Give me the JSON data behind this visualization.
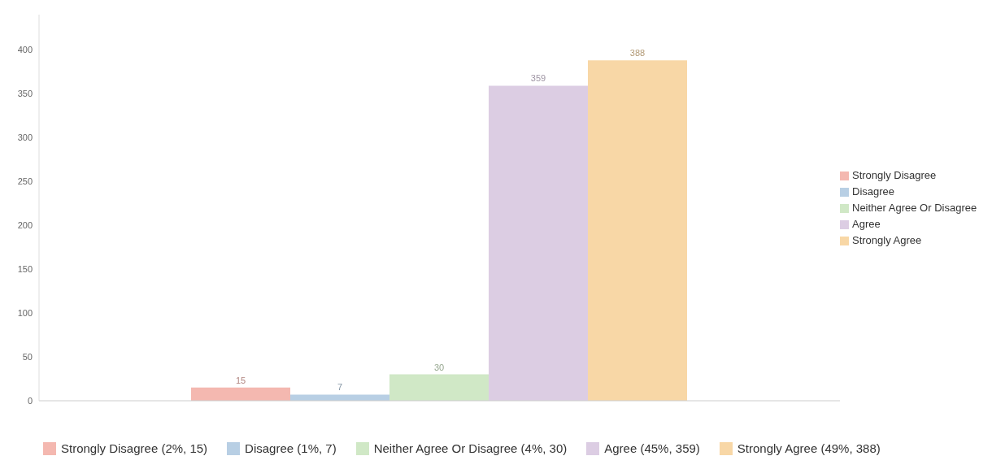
{
  "chart_data": {
    "type": "bar",
    "categories": [
      null
    ],
    "series": [
      {
        "name": "Strongly Disagree",
        "color": "#f4b8b0",
        "values": [
          15
        ]
      },
      {
        "name": "Disagree",
        "color": "#b8cfe4",
        "values": [
          7
        ]
      },
      {
        "name": "Neither Agree Or Disagree",
        "color": "#d0e8c6",
        "values": [
          30
        ]
      },
      {
        "name": "Agree",
        "color": "#dccde3",
        "values": [
          359
        ]
      },
      {
        "name": "Strongly Agree",
        "color": "#f8d7a6",
        "values": [
          388
        ]
      }
    ],
    "ylim": [
      0,
      440
    ],
    "yticks": [
      0,
      50,
      100,
      150,
      200,
      250,
      300,
      350,
      400
    ],
    "grid": false,
    "legend": "right",
    "data_labels": true,
    "annotations": [
      "Strongly Disagree (2%, 15)",
      "Disagree (1%, 7)",
      "Neither Agree Or Disagree (4%, 30)",
      "Agree (45%, 359)",
      "Strongly Agree (49%, 388)"
    ]
  }
}
